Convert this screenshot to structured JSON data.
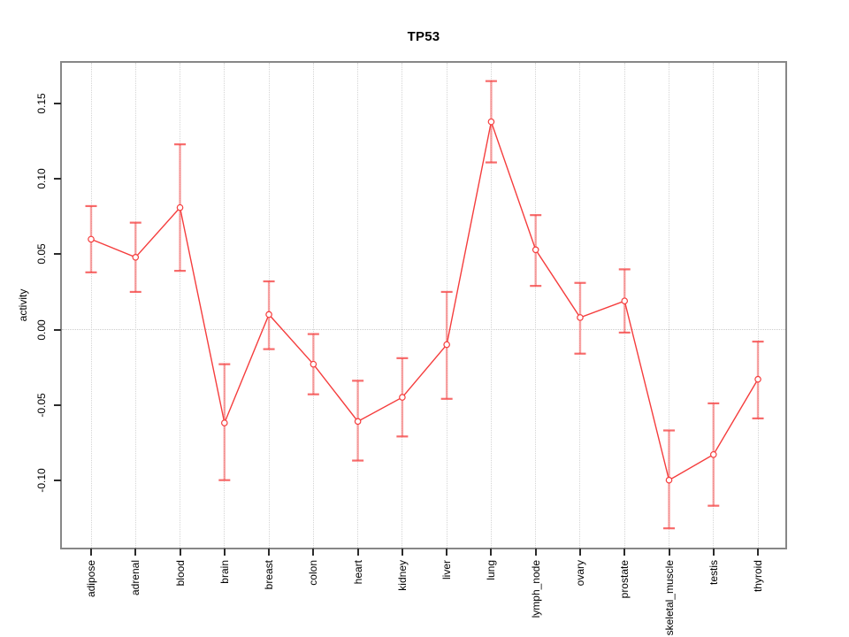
{
  "title": "TP53",
  "ylabel": "activity",
  "colors": {
    "line": "#f53d3d",
    "marker_stroke": "#f53d3d",
    "errorbar_stem": "rgba(245,90,90,0.55)",
    "errorbar_cap": "rgba(245,70,70,0.8)",
    "grid": "#d4d4d4",
    "zero_line": "#cccccc",
    "box": "#878787",
    "tick": "#2b2b2b"
  },
  "chart_data": {
    "type": "line",
    "title": "TP53",
    "xlabel": "",
    "ylabel": "activity",
    "legend": "none",
    "grid": "vertical dotted gridline at each category; dotted horizontal line at y=0",
    "marker": "open-circle",
    "error_bars": true,
    "ylim": [
      -0.144,
      0.177
    ],
    "y_ticks": [
      {
        "value": 0.15,
        "label": "0.15"
      },
      {
        "value": 0.1,
        "label": "0.10"
      },
      {
        "value": 0.05,
        "label": "0.05"
      },
      {
        "value": 0.0,
        "label": "0.00"
      },
      {
        "value": -0.05,
        "label": "-0.05"
      },
      {
        "value": -0.1,
        "label": "-0.10"
      }
    ],
    "categories": [
      "adipose",
      "adrenal",
      "blood",
      "brain",
      "breast",
      "colon",
      "heart",
      "kidney",
      "liver",
      "lung",
      "lymph_node",
      "ovary",
      "prostate",
      "skeletal_muscle",
      "testis",
      "thyroid"
    ],
    "series": [
      {
        "name": "activity_mean",
        "values": [
          0.06,
          0.048,
          0.081,
          -0.062,
          0.01,
          -0.023,
          -0.061,
          -0.045,
          -0.01,
          0.138,
          0.053,
          0.008,
          0.019,
          -0.1,
          -0.083,
          -0.033
        ]
      },
      {
        "name": "ci_upper",
        "values": [
          0.082,
          0.071,
          0.123,
          -0.023,
          0.032,
          -0.003,
          -0.034,
          -0.019,
          0.025,
          0.165,
          0.076,
          0.031,
          0.04,
          -0.067,
          -0.049,
          -0.008
        ]
      },
      {
        "name": "ci_lower",
        "values": [
          0.038,
          0.025,
          0.039,
          -0.1,
          -0.013,
          -0.043,
          -0.087,
          -0.071,
          -0.046,
          0.111,
          0.029,
          -0.016,
          -0.002,
          -0.132,
          -0.117,
          -0.059
        ]
      }
    ]
  }
}
